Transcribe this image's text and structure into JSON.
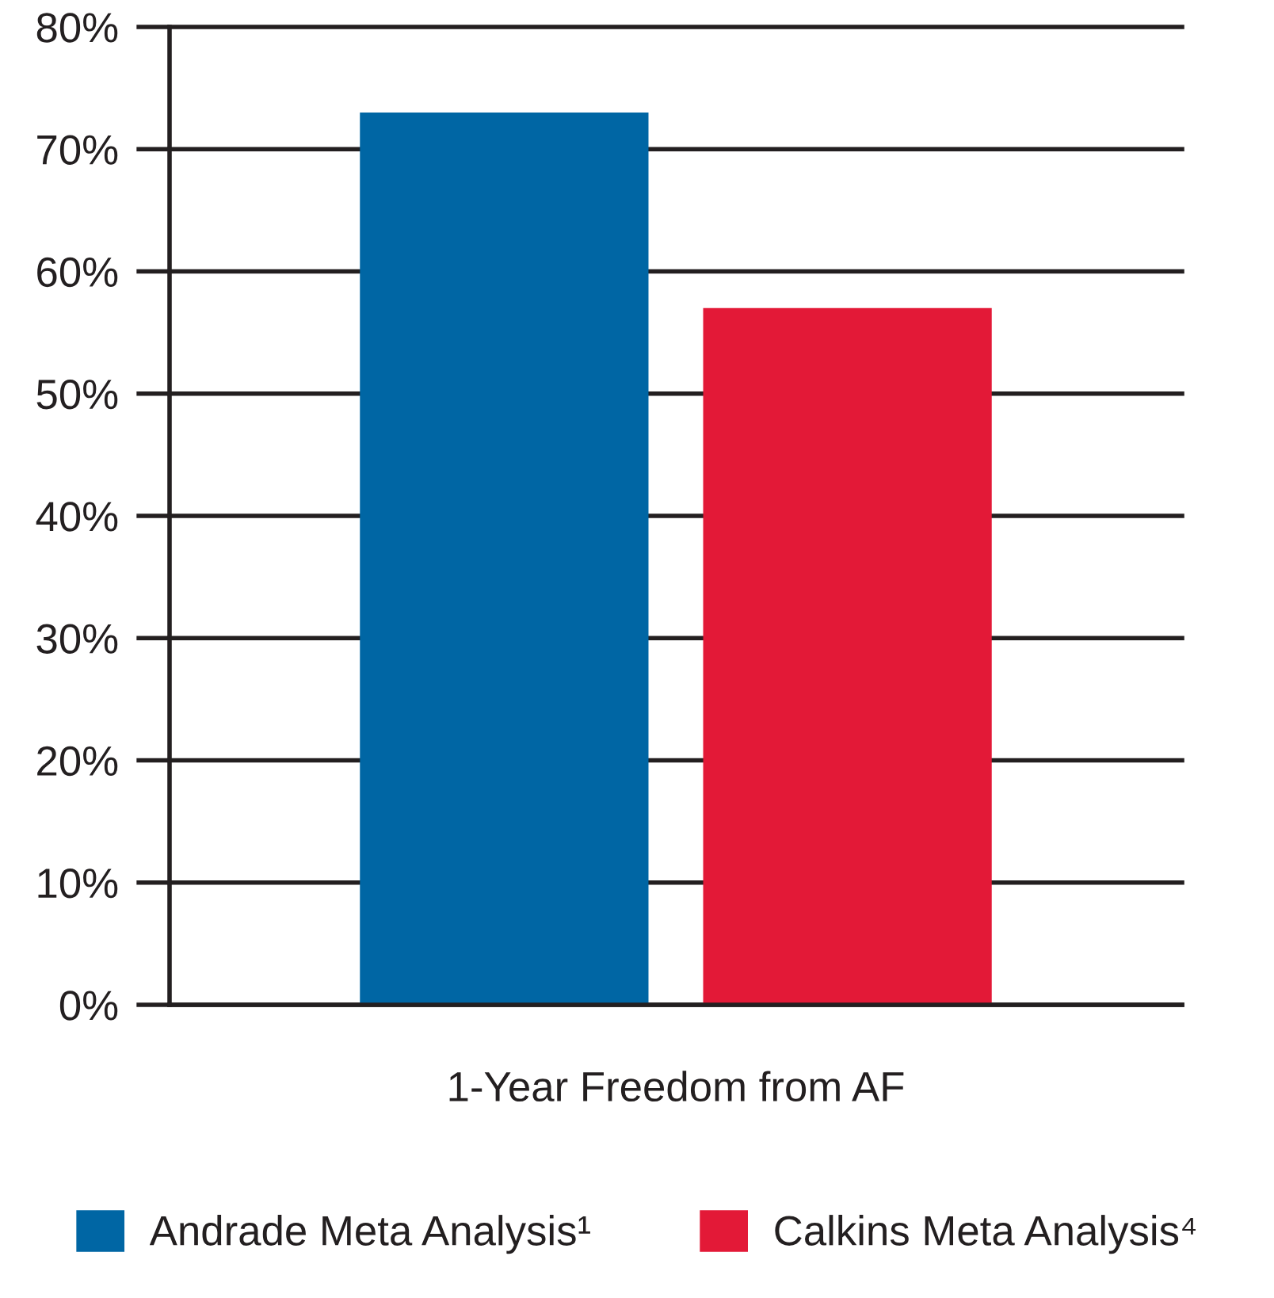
{
  "chart_data": {
    "type": "bar",
    "categories": [
      "1-Year Freedom from AF"
    ],
    "series": [
      {
        "name": "Andrade Meta Analysis¹",
        "color": "#0066a4",
        "values": [
          73
        ]
      },
      {
        "name": "Calkins Meta Analysis⁴",
        "color": "#e31937",
        "values": [
          57
        ]
      }
    ],
    "ylim": [
      0,
      80
    ],
    "yticks": [
      {
        "value": 0,
        "label": "0%"
      },
      {
        "value": 10,
        "label": "10%"
      },
      {
        "value": 20,
        "label": "20%"
      },
      {
        "value": 30,
        "label": "30%"
      },
      {
        "value": 40,
        "label": "40%"
      },
      {
        "value": 50,
        "label": "50%"
      },
      {
        "value": 60,
        "label": "60%"
      },
      {
        "value": 70,
        "label": "70%"
      },
      {
        "value": 80,
        "label": "80%"
      }
    ],
    "grid": "y",
    "legend": "bottom"
  }
}
